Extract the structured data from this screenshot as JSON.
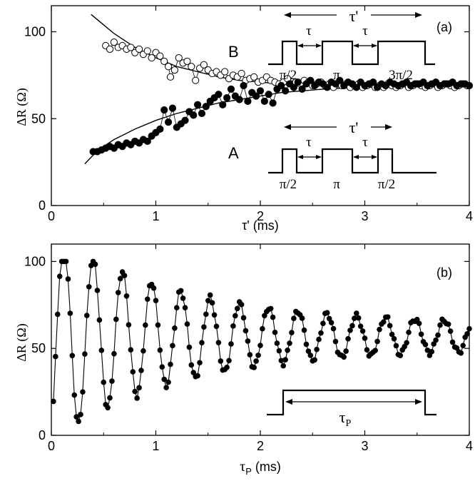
{
  "chart_data": [
    {
      "type": "scatter",
      "panel_label": "(a)",
      "xlabel": "τ' (ms)",
      "ylabel": "ΔR (Ω)",
      "xlim": [
        0,
        4
      ],
      "ylim": [
        0,
        115
      ],
      "xticks": [
        "0",
        "1",
        "2",
        "3",
        "4"
      ],
      "yticks": [
        "0",
        "50",
        "100"
      ],
      "ytick_values": [
        0,
        50,
        100
      ],
      "series": [
        {
          "name": "B",
          "marker": "open-circle",
          "x": [
            0.52,
            0.56,
            0.6,
            0.64,
            0.68,
            0.72,
            0.76,
            0.8,
            0.84,
            0.88,
            0.92,
            0.96,
            1.0,
            1.04,
            1.08,
            1.12,
            1.14,
            1.18,
            1.22,
            1.26,
            1.3,
            1.34,
            1.38,
            1.42,
            1.46,
            1.5,
            1.54,
            1.58,
            1.62,
            1.66,
            1.7,
            1.74,
            1.78,
            1.82,
            1.86,
            1.9,
            1.94,
            1.98,
            2.02,
            2.06,
            2.1,
            2.14,
            2.18,
            2.22,
            2.26,
            2.3,
            2.34,
            2.38,
            2.42,
            2.46,
            2.5,
            2.54,
            2.58,
            2.62,
            2.66,
            2.7,
            2.74,
            2.78,
            2.82,
            2.86,
            2.9,
            2.94,
            2.98,
            3.02,
            3.06,
            3.1,
            3.14,
            3.18,
            3.22,
            3.26,
            3.3,
            3.34,
            3.38,
            3.42,
            3.46,
            3.5,
            3.54,
            3.58,
            3.62,
            3.66,
            3.7,
            3.74,
            3.78,
            3.82,
            3.86,
            3.9,
            3.94,
            3.98
          ],
          "y": [
            92,
            90,
            94,
            91,
            92,
            90,
            91,
            88,
            90,
            87,
            89,
            85,
            88,
            86,
            83,
            80,
            74,
            78,
            85,
            82,
            83,
            80,
            72,
            79,
            81,
            78,
            76,
            77,
            75,
            77,
            73,
            75,
            74,
            76,
            72,
            73,
            74,
            71,
            72,
            74,
            72,
            71,
            70,
            71,
            73,
            70,
            71,
            70,
            72,
            71,
            69,
            70,
            71,
            69,
            70,
            68,
            70,
            69,
            70,
            68,
            69,
            70,
            68,
            69,
            70,
            68,
            69,
            68,
            70,
            69,
            68,
            69,
            70,
            68,
            69,
            70,
            69,
            68,
            69,
            70,
            68,
            69,
            70,
            69,
            68,
            69,
            70,
            69
          ]
        },
        {
          "name": "A",
          "marker": "filled-circle",
          "x": [
            0.4,
            0.44,
            0.48,
            0.52,
            0.56,
            0.6,
            0.64,
            0.68,
            0.72,
            0.76,
            0.8,
            0.84,
            0.88,
            0.92,
            0.96,
            1.0,
            1.04,
            1.08,
            1.12,
            1.16,
            1.2,
            1.24,
            1.28,
            1.32,
            1.36,
            1.4,
            1.44,
            1.48,
            1.52,
            1.56,
            1.6,
            1.64,
            1.68,
            1.72,
            1.76,
            1.8,
            1.84,
            1.88,
            1.92,
            1.96,
            2.0,
            2.04,
            2.08,
            2.12,
            2.16,
            2.2,
            2.24,
            2.28,
            2.32,
            2.36,
            2.4,
            2.44,
            2.48,
            2.52,
            2.56,
            2.6,
            2.64,
            2.68,
            2.72,
            2.76,
            2.8,
            2.84,
            2.88,
            2.92,
            2.96,
            3.0,
            3.04,
            3.08,
            3.12,
            3.16,
            3.2,
            3.24,
            3.28,
            3.32,
            3.36,
            3.4,
            3.44,
            3.48,
            3.52,
            3.56,
            3.6,
            3.64,
            3.68,
            3.72,
            3.76,
            3.8,
            3.84,
            3.88,
            3.92,
            3.96,
            4.0
          ],
          "y": [
            31,
            31,
            32,
            33,
            34,
            33,
            35,
            34,
            36,
            35,
            37,
            36,
            38,
            37,
            40,
            42,
            44,
            55,
            48,
            56,
            45,
            47,
            49,
            54,
            52,
            58,
            53,
            57,
            60,
            62,
            64,
            58,
            62,
            67,
            63,
            61,
            69,
            60,
            65,
            63,
            66,
            60,
            64,
            59,
            67,
            69,
            66,
            70,
            68,
            71,
            67,
            70,
            72,
            69,
            71,
            70,
            68,
            71,
            70,
            72,
            69,
            71,
            70,
            68,
            71,
            69,
            70,
            71,
            68,
            70,
            69,
            71,
            70,
            69,
            70,
            71,
            69,
            70,
            70,
            71,
            69,
            70,
            71,
            69,
            70,
            70,
            71,
            69,
            70,
            70,
            69
          ]
        }
      ],
      "fit_curves": [
        {
          "name": "B-fit",
          "x": [
            0.38,
            0.5,
            0.6,
            0.7,
            0.8,
            0.9,
            1.0,
            1.2,
            1.4,
            1.6,
            1.8,
            2.0,
            2.2,
            2.4,
            2.6,
            2.8,
            3.0,
            3.2,
            3.4,
            3.6,
            3.8,
            4.0
          ],
          "y": [
            110,
            104,
            99,
            95,
            91,
            88,
            85,
            80,
            77,
            74,
            72,
            71,
            70,
            69.5,
            69.2,
            69,
            68.9,
            68.8,
            68.8,
            68.8,
            68.8,
            68.8
          ]
        },
        {
          "name": "A-fit",
          "x": [
            0.32,
            0.4,
            0.5,
            0.6,
            0.7,
            0.8,
            1.0,
            1.2,
            1.4,
            1.6,
            1.8,
            2.0,
            2.2,
            2.4,
            2.6,
            2.8,
            3.0,
            3.2,
            3.4,
            3.6,
            3.8,
            4.0
          ],
          "y": [
            24,
            29,
            34,
            38,
            41,
            44,
            49,
            53,
            56,
            59,
            61,
            63,
            65,
            66,
            67,
            67.6,
            68,
            68.3,
            68.5,
            68.6,
            68.7,
            68.8
          ]
        }
      ],
      "inset_B": {
        "label": "B",
        "tau_prime_label": "τ'",
        "tau_label": "τ",
        "pulse_labels": [
          "π/2",
          "π",
          "3π/2"
        ]
      },
      "inset_A": {
        "label": "A",
        "tau_prime_label": "τ'",
        "tau_label": "τ",
        "pulse_labels": [
          "π/2",
          "π",
          "π/2"
        ]
      }
    },
    {
      "type": "line",
      "panel_label": "(b)",
      "xlabel": "τP (ms)",
      "xlabel_main": "τ",
      "xlabel_sub": "P",
      "xlabel_unit": " (ms)",
      "ylabel": "ΔR (Ω)",
      "xlim": [
        0,
        4
      ],
      "ylim": [
        0,
        110
      ],
      "xticks": [
        "0",
        "1",
        "2",
        "3",
        "4"
      ],
      "yticks": [
        "0",
        "50",
        "100"
      ],
      "ytick_values": [
        0,
        50,
        100
      ],
      "oscillation": {
        "period_ms": 0.28,
        "decay_ms": 1.2,
        "baseline": 57,
        "amplitude_at_zero": 54,
        "x_start": 0.02,
        "x_end": 4.0,
        "n_points": 200
      },
      "inset": {
        "label_main": "τ",
        "label_sub": "P"
      }
    }
  ]
}
